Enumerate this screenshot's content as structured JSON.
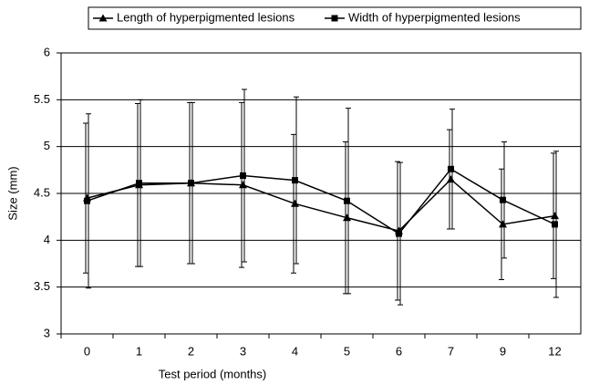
{
  "chart_data": {
    "type": "line",
    "xlabel": "Test period (months)",
    "ylabel": "Size (mm)",
    "categories": [
      "0",
      "1",
      "2",
      "3",
      "4",
      "5",
      "6",
      "7",
      "9",
      "12"
    ],
    "series": [
      {
        "name": "Length of hyperpigmented lesions",
        "color": "#000000",
        "marker": "triangle",
        "values": [
          4.45,
          4.59,
          4.61,
          4.59,
          4.39,
          4.24,
          4.1,
          4.65,
          4.17,
          4.26
        ],
        "errors": [
          0.8,
          0.87,
          0.86,
          0.88,
          0.74,
          0.81,
          0.74,
          0.53,
          0.59,
          0.67
        ]
      },
      {
        "name": "Width of hyperpigmented lesions",
        "color": "#000000",
        "marker": "square",
        "values": [
          4.42,
          4.61,
          4.61,
          4.69,
          4.64,
          4.42,
          4.07,
          4.76,
          4.43,
          4.17
        ],
        "errors": [
          0.93,
          0.89,
          0.86,
          0.92,
          0.89,
          0.99,
          0.76,
          0.64,
          0.62,
          0.78
        ]
      }
    ],
    "ylim": [
      3,
      6
    ],
    "yticks": [
      3,
      3.5,
      4,
      4.5,
      5,
      5.5,
      6
    ],
    "grid": true,
    "legend": "top"
  }
}
